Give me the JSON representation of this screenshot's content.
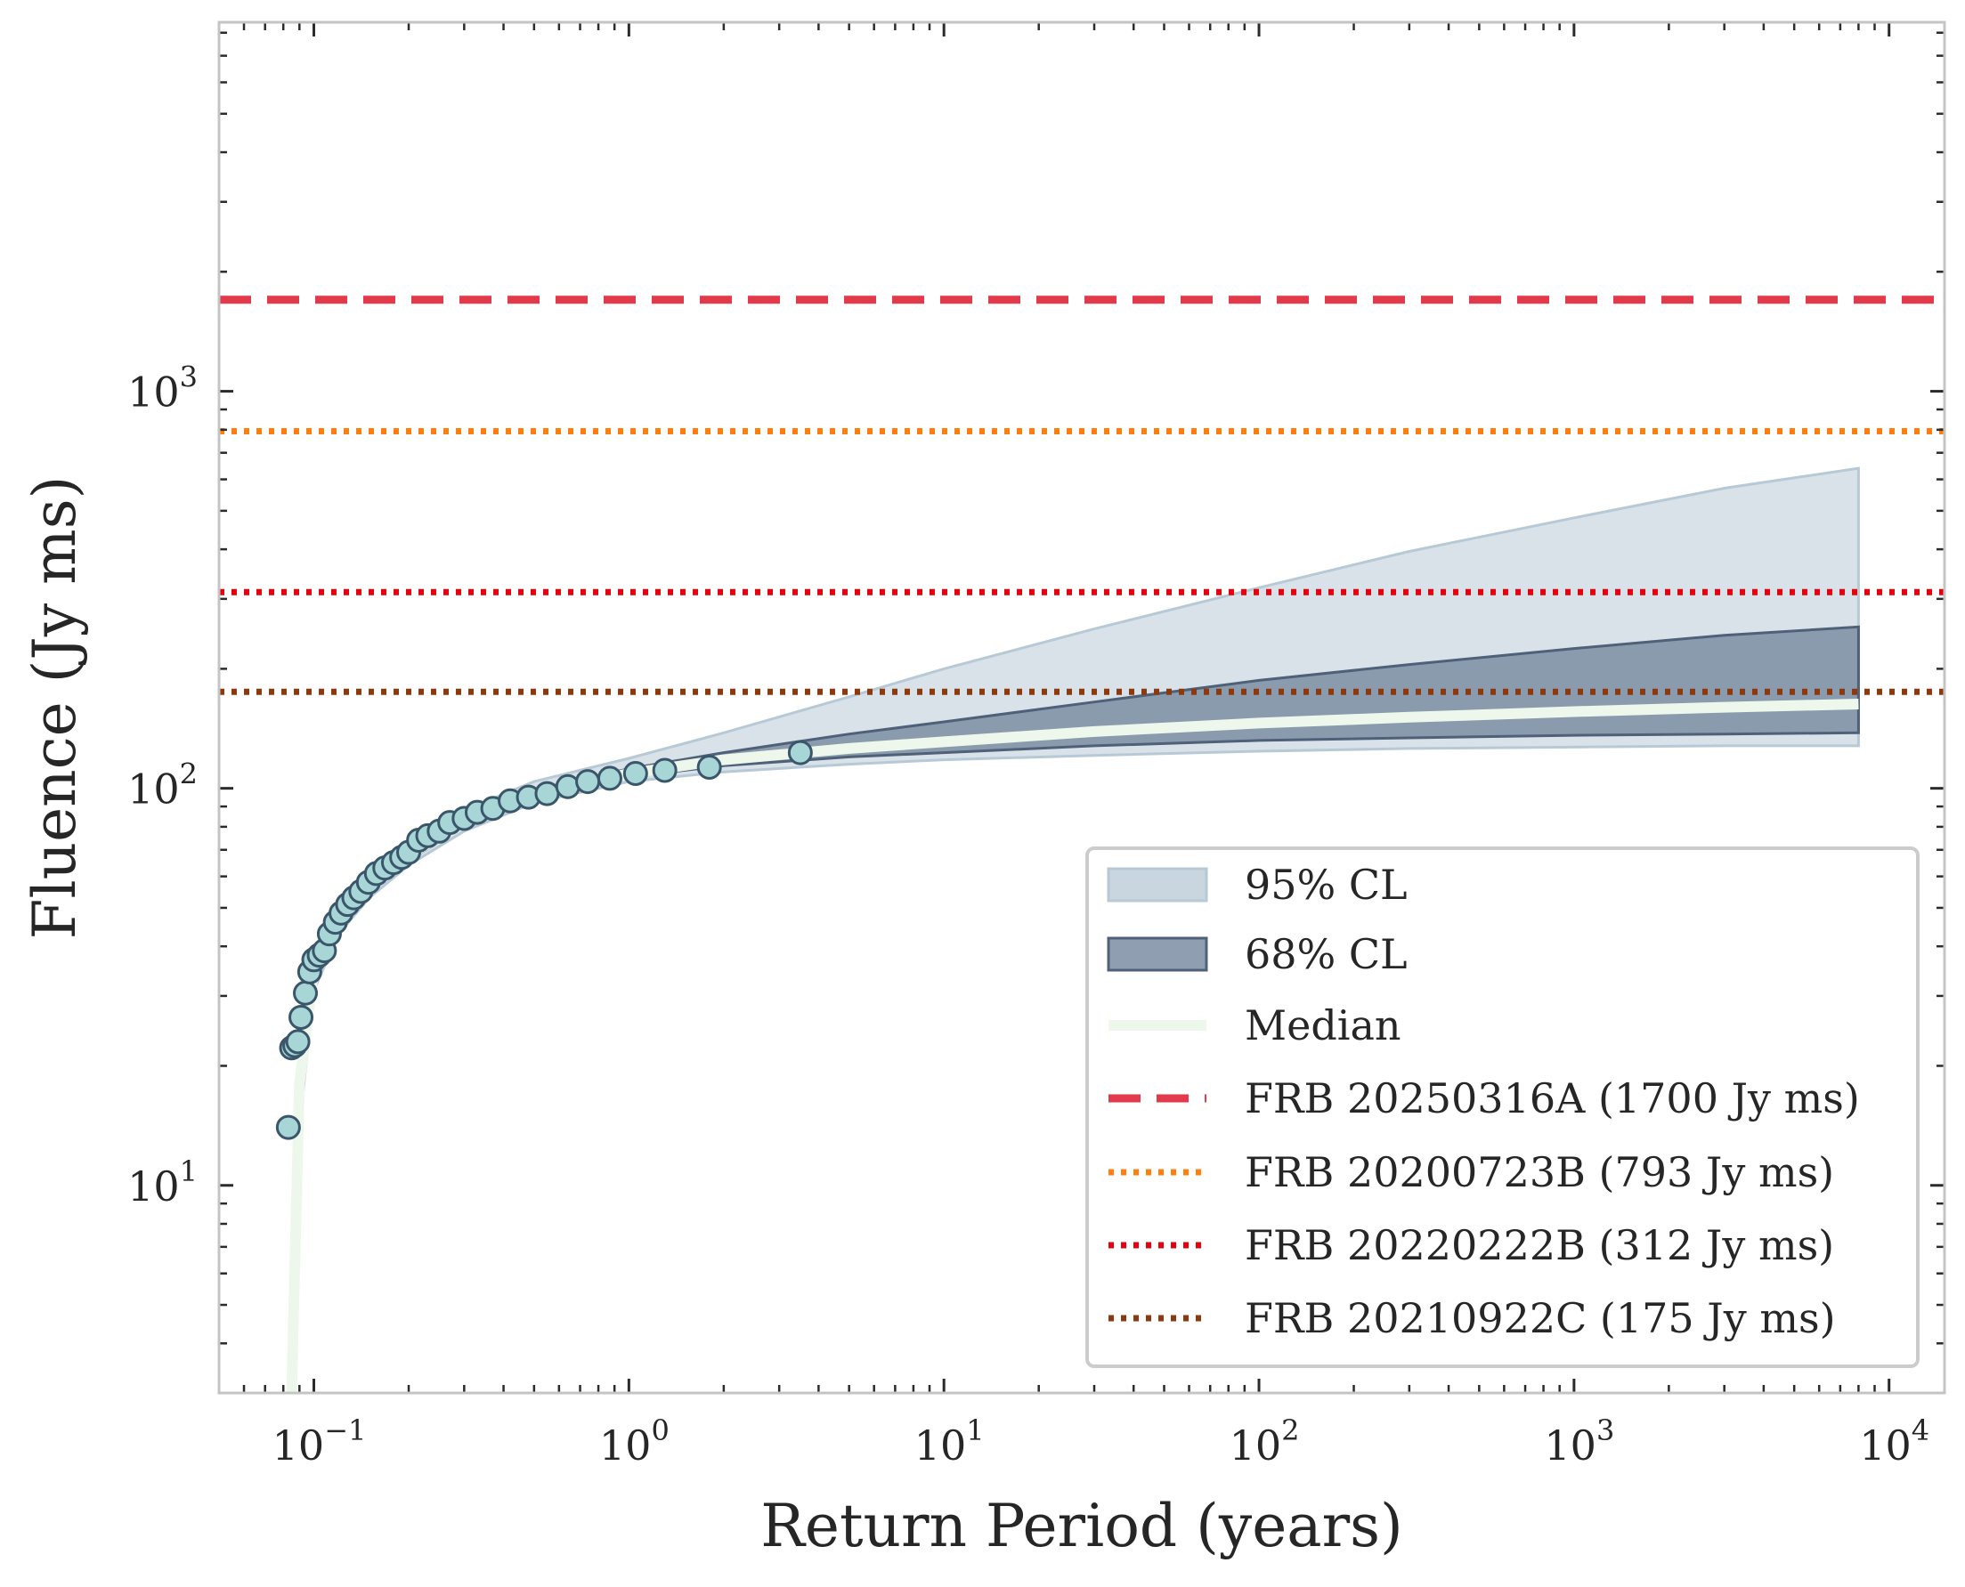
{
  "chart_data": {
    "type": "scatter",
    "xlabel": "Return Period (years)",
    "ylabel": "Fluence (Jy ms)",
    "xscale": "log",
    "yscale": "log",
    "xlim": [
      0.05,
      15000
    ],
    "ylim": [
      3,
      8500
    ],
    "x_ticks": [
      {
        "base": "10",
        "exp": "−1",
        "value": 0.1
      },
      {
        "base": "10",
        "exp": "0",
        "value": 1
      },
      {
        "base": "10",
        "exp": "1",
        "value": 10
      },
      {
        "base": "10",
        "exp": "2",
        "value": 100
      },
      {
        "base": "10",
        "exp": "3",
        "value": 1000
      },
      {
        "base": "10",
        "exp": "4",
        "value": 10000
      }
    ],
    "y_ticks": [
      {
        "base": "10",
        "exp": "1",
        "value": 10
      },
      {
        "base": "10",
        "exp": "2",
        "value": 100
      },
      {
        "base": "10",
        "exp": "3",
        "value": 1000
      }
    ],
    "observed_points": [
      {
        "x": 0.083,
        "y": 14
      },
      {
        "x": 0.085,
        "y": 22.2
      },
      {
        "x": 0.087,
        "y": 22.5
      },
      {
        "x": 0.089,
        "y": 23
      },
      {
        "x": 0.091,
        "y": 26.5
      },
      {
        "x": 0.094,
        "y": 30.5
      },
      {
        "x": 0.097,
        "y": 34.5
      },
      {
        "x": 0.1,
        "y": 37
      },
      {
        "x": 0.104,
        "y": 38
      },
      {
        "x": 0.108,
        "y": 39
      },
      {
        "x": 0.112,
        "y": 43
      },
      {
        "x": 0.117,
        "y": 46
      },
      {
        "x": 0.122,
        "y": 48.5
      },
      {
        "x": 0.128,
        "y": 51
      },
      {
        "x": 0.134,
        "y": 53
      },
      {
        "x": 0.141,
        "y": 55
      },
      {
        "x": 0.149,
        "y": 58
      },
      {
        "x": 0.158,
        "y": 61
      },
      {
        "x": 0.168,
        "y": 63
      },
      {
        "x": 0.179,
        "y": 65
      },
      {
        "x": 0.19,
        "y": 67
      },
      {
        "x": 0.2,
        "y": 69
      },
      {
        "x": 0.215,
        "y": 74
      },
      {
        "x": 0.23,
        "y": 76
      },
      {
        "x": 0.25,
        "y": 78
      },
      {
        "x": 0.27,
        "y": 82
      },
      {
        "x": 0.3,
        "y": 84
      },
      {
        "x": 0.33,
        "y": 87
      },
      {
        "x": 0.37,
        "y": 89
      },
      {
        "x": 0.42,
        "y": 93
      },
      {
        "x": 0.48,
        "y": 95
      },
      {
        "x": 0.55,
        "y": 97
      },
      {
        "x": 0.64,
        "y": 101
      },
      {
        "x": 0.74,
        "y": 104
      },
      {
        "x": 0.87,
        "y": 106
      },
      {
        "x": 1.05,
        "y": 109
      },
      {
        "x": 1.3,
        "y": 111
      },
      {
        "x": 1.8,
        "y": 113
      },
      {
        "x": 3.5,
        "y": 123
      }
    ],
    "median": {
      "label": "Median",
      "x": [
        0.085,
        0.09,
        0.1,
        0.12,
        0.15,
        0.2,
        0.3,
        0.5,
        1,
        2,
        5,
        10,
        30,
        100,
        300,
        1000,
        3000,
        8000
      ],
      "y": [
        3,
        18,
        35,
        47,
        57,
        68,
        82,
        96,
        109,
        118,
        126,
        131,
        139,
        146,
        151,
        156,
        160,
        163
      ]
    },
    "band_68": {
      "label": "68% CL",
      "x": [
        0.085,
        0.09,
        0.1,
        0.12,
        0.15,
        0.2,
        0.3,
        0.5,
        1,
        2,
        5,
        10,
        30,
        100,
        300,
        1000,
        3000,
        8000
      ],
      "lower": [
        3,
        16,
        33,
        45,
        55,
        66,
        80,
        94,
        107,
        114,
        120,
        123,
        128,
        132,
        134,
        136,
        137,
        138
      ],
      "upper": [
        3,
        20,
        37,
        49,
        59,
        70,
        84,
        99,
        112,
        123,
        137,
        147,
        165,
        187,
        205,
        225,
        243,
        255
      ]
    },
    "band_95": {
      "label": "95% CL",
      "x": [
        0.085,
        0.09,
        0.1,
        0.12,
        0.15,
        0.2,
        0.3,
        0.5,
        1,
        2,
        5,
        10,
        30,
        100,
        300,
        1000,
        3000,
        8000
      ],
      "lower": [
        3,
        14,
        31,
        43,
        53,
        64,
        78,
        92,
        104,
        110,
        115,
        118,
        121,
        124,
        126,
        127,
        128,
        128
      ],
      "upper": [
        3,
        22,
        39,
        51,
        61,
        73,
        88,
        104,
        119,
        138,
        170,
        200,
        252,
        320,
        395,
        480,
        570,
        640
      ]
    },
    "reference_lines": [
      {
        "label": "FRB 20250316A (1700 Jy ms)",
        "value": 1700,
        "color": "#e23a4a",
        "style": "dashed"
      },
      {
        "label": "FRB 20200723B (793 Jy ms)",
        "value": 793,
        "color": "#ff7f0e",
        "style": "dotted"
      },
      {
        "label": "FRB 20220222B (312 Jy ms)",
        "value": 312,
        "color": "#e3000f",
        "style": "dotted"
      },
      {
        "label": "FRB 20210922C (175 Jy ms)",
        "value": 175,
        "color": "#8b3a0f",
        "style": "dotted"
      }
    ],
    "legend": {
      "position": "lower right",
      "entries": [
        "95% CL",
        "68% CL",
        "Median",
        "FRB 20250316A (1700 Jy ms)",
        "FRB 20200723B (793 Jy ms)",
        "FRB 20220222B (312 Jy ms)",
        "FRB 20210922C (175 Jy ms)"
      ]
    },
    "colors": {
      "band_95": "#c9d6e0",
      "band_68": "#7b8ea3",
      "band_68_edge": "#4f6079",
      "median": "#eef7ec",
      "point_fill": "#a8d5d6",
      "point_edge": "#3a566a",
      "axis": "#bfbfbf"
    }
  }
}
